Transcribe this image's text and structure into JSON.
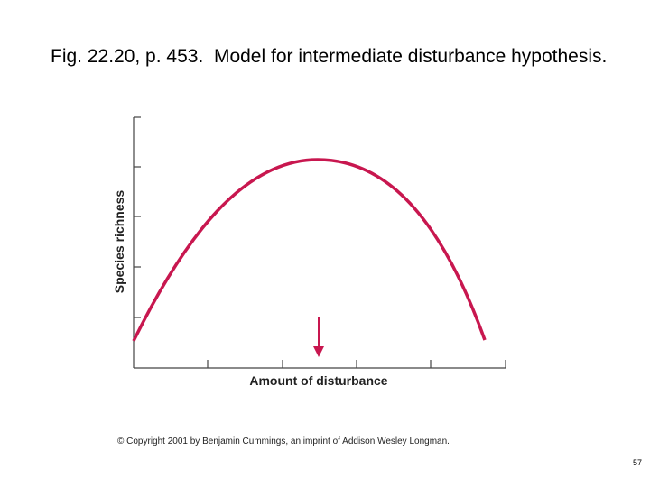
{
  "slide": {
    "title": "Fig. 22.20, p. 453.  Model for intermediate disturbance hypothesis.",
    "figure": {
      "y_label": "Species richness",
      "x_label": "Amount of disturbance"
    },
    "copyright": "© Copyright 2001 by Benjamin Cummings, an imprint of Addison Wesley Longman.",
    "page_number": "57"
  }
}
